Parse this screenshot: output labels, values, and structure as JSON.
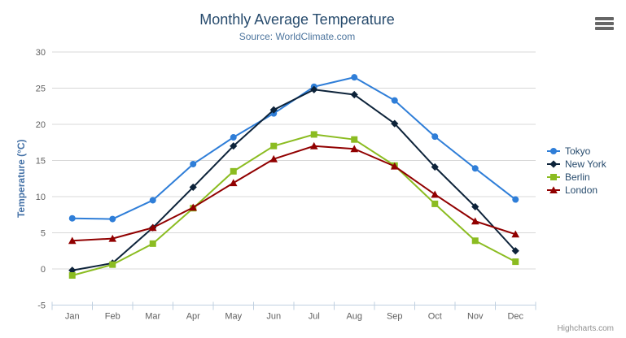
{
  "header": {
    "title": "Monthly Average Temperature",
    "subtitle": "Source: WorldClimate.com"
  },
  "credits": {
    "label": "Highcharts.com"
  },
  "colors": {
    "title_text": "#274b6d",
    "subtitle_text": "#4d759e",
    "axis_title": "#4572a7",
    "tick_label": "#606060",
    "grid_line": "#d8d8d8",
    "axis_line": "#c0d0e0",
    "legend_text": "#274b6d",
    "credits_text": "#909090",
    "export_icon": "#666666"
  },
  "chart_data": {
    "type": "line",
    "title": "Monthly Average Temperature",
    "subtitle": "Source: WorldClimate.com",
    "categories": [
      "Jan",
      "Feb",
      "Mar",
      "Apr",
      "May",
      "Jun",
      "Jul",
      "Aug",
      "Sep",
      "Oct",
      "Nov",
      "Dec"
    ],
    "xlabel": "",
    "ylabel": "Temperature (°C)",
    "ylim": [
      -5,
      30
    ],
    "ytick_step": 5,
    "yticks": [
      -5,
      0,
      5,
      10,
      15,
      20,
      25,
      30
    ],
    "grid": "horizontal",
    "legend_position": "right-middle",
    "series": [
      {
        "name": "Tokyo",
        "color": "#2f7ed8",
        "marker": "circle",
        "values": [
          7.0,
          6.9,
          9.5,
          14.5,
          18.2,
          21.5,
          25.2,
          26.5,
          23.3,
          18.3,
          13.9,
          9.6
        ]
      },
      {
        "name": "New York",
        "color": "#0d233a",
        "marker": "diamond",
        "values": [
          -0.2,
          0.8,
          5.7,
          11.3,
          17.0,
          22.0,
          24.8,
          24.1,
          20.1,
          14.1,
          8.6,
          2.5
        ]
      },
      {
        "name": "Berlin",
        "color": "#8bbc21",
        "marker": "square",
        "values": [
          -0.9,
          0.6,
          3.5,
          8.4,
          13.5,
          17.0,
          18.6,
          17.9,
          14.3,
          9.0,
          3.9,
          1.0
        ]
      },
      {
        "name": "London",
        "color": "#910000",
        "marker": "triangle",
        "values": [
          3.9,
          4.2,
          5.7,
          8.5,
          11.9,
          15.2,
          17.0,
          16.6,
          14.2,
          10.3,
          6.6,
          4.8
        ]
      }
    ]
  }
}
